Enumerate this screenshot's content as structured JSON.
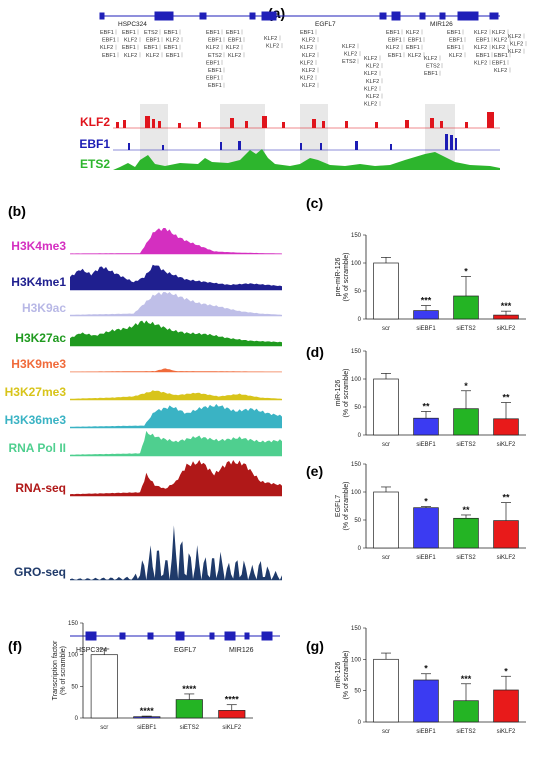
{
  "colors": {
    "klf2": "#e0141c",
    "ebf1": "#1c1cb4",
    "ets2": "#2db52d",
    "scr": "#ffffff",
    "siEBF1": "#3b3bf2",
    "siETS2": "#24b424",
    "siKLF2": "#e81a1a",
    "h3k4me3": "#d42fc0",
    "h3k4me1": "#1f1f8f",
    "h3k9ac": "#b8b8e6",
    "h3k27ac": "#1f9a1f",
    "h3k9me3": "#f06a3a",
    "h3k27me3": "#d8c41a",
    "h3k36me3": "#3ab3c4",
    "rnapol2": "#4fcf8f",
    "rnaseq": "#b01818",
    "groseq": "#1f3a6a"
  },
  "panel_a": {
    "label": "(a)",
    "genes": [
      "HSPC324",
      "EGFL7",
      "MIR126"
    ],
    "tf_tracks": [
      {
        "name": "KLF2",
        "color": "#e0141c"
      },
      {
        "name": "EBF1",
        "color": "#1c1cb4"
      },
      {
        "name": "ETS2",
        "color": "#2db52d"
      }
    ],
    "site_labels": [
      [
        "EBF1",
        "EBF1",
        "KLF2",
        "EBF1"
      ],
      [
        "EBF1",
        "KLF2",
        "EBF1",
        "KLF2"
      ],
      [
        "ETS2",
        "EBF1",
        "EBF1",
        "KLF2"
      ],
      [
        "EBF1",
        "KLF2",
        "EBF1",
        "EBF1"
      ],
      [
        "EBF1",
        "EBF1",
        "KLF2",
        "ETS2",
        "EBF1",
        "EBF1",
        "EBF1",
        "EBF1"
      ],
      [
        "EBF1",
        "EBF1",
        "KLF2",
        "KLF2"
      ],
      [
        "KLF2",
        "KLF2"
      ],
      [
        "EBF1",
        "KLF2",
        "KLF2",
        "KLF2",
        "KLF2",
        "KLF2",
        "KLF2",
        "KLF2"
      ],
      [
        "KLF2",
        "KLF2",
        "ETS2"
      ],
      [
        "KLF2",
        "KLF2",
        "KLF2",
        "KLF2",
        "KLF2",
        "KLF2",
        "KLF2"
      ],
      [
        "EBF1",
        "EBF1",
        "KLF2",
        "EBF1"
      ],
      [
        "KLF2",
        "EBF1",
        "EBF1",
        "KLF2"
      ],
      [
        "KLF2",
        "ETS2",
        "EBF1"
      ],
      [
        "EBF1",
        "EBF1",
        "EBF1",
        "KLF2"
      ],
      [
        "KLF2",
        "EBF1",
        "KLF2",
        "EBF1",
        "KLF2"
      ],
      [
        "KLF2",
        "KLF2",
        "KLF2",
        "EBF1",
        "EBF1",
        "KLF2"
      ],
      [
        "KLF2",
        "KLF2",
        "KLF2"
      ]
    ]
  },
  "panel_b": {
    "label": "(b)",
    "tracks": [
      {
        "name": "H3K4me3",
        "color": "#d42fc0"
      },
      {
        "name": "H3K4me1",
        "color": "#1f1f8f"
      },
      {
        "name": "H3K9ac",
        "color": "#b8b8e6"
      },
      {
        "name": "H3K27ac",
        "color": "#1f9a1f"
      },
      {
        "name": "H3K9me3",
        "color": "#f06a3a"
      },
      {
        "name": "H3K27me3",
        "color": "#d8c41a"
      },
      {
        "name": "H3K36me3",
        "color": "#3ab3c4"
      },
      {
        "name": "RNA Pol II",
        "color": "#4fcf8f"
      },
      {
        "name": "RNA-seq",
        "color": "#b01818"
      },
      {
        "name": "GRO-seq",
        "color": "#1f3a6a"
      }
    ],
    "genes": [
      "HSPC324",
      "EGFL7",
      "MIR126"
    ]
  },
  "chart_data": [
    {
      "id": "c",
      "label": "(c)",
      "type": "bar",
      "ylabel_lines": [
        "pre-miR-126",
        "(% of scramble)"
      ],
      "categories": [
        "scr",
        "siEBF1",
        "siETS2",
        "siKLF2"
      ],
      "values": [
        100,
        15,
        41,
        7
      ],
      "errors": [
        10,
        9,
        35,
        7
      ],
      "significance": [
        "",
        "***",
        "*",
        "***"
      ],
      "ylim": [
        0,
        150
      ],
      "yticks": [
        0,
        50,
        100,
        150
      ],
      "ytick_labels": [
        "0",
        "50",
        "100",
        "150"
      ]
    },
    {
      "id": "d",
      "label": "(d)",
      "type": "bar",
      "ylabel_lines": [
        "miR-126",
        "(% of scramble)"
      ],
      "categories": [
        "scr",
        "siEBF1",
        "siETS2",
        "siKLF2"
      ],
      "values": [
        100,
        30,
        47,
        29
      ],
      "errors": [
        10,
        12,
        32,
        29
      ],
      "significance": [
        "",
        "**",
        "*",
        "**"
      ],
      "ylim": [
        0,
        150
      ],
      "yticks": [
        0,
        50,
        100,
        150
      ],
      "ytick_labels": [
        "0",
        "50",
        "100",
        "150"
      ]
    },
    {
      "id": "e",
      "label": "(e)",
      "type": "bar",
      "ylabel_lines": [
        "EGFL7",
        "(% of scramble)"
      ],
      "categories": [
        "scr",
        "siEBF1",
        "siETS2",
        "siKLF2"
      ],
      "values": [
        100,
        72,
        53,
        49
      ],
      "errors": [
        9,
        2,
        6,
        32
      ],
      "significance": [
        "",
        "*",
        "**",
        "**"
      ],
      "ylim": [
        0,
        150
      ],
      "yticks": [
        0,
        50,
        100,
        150
      ],
      "ytick_labels": [
        "0",
        "50",
        "100",
        "150"
      ]
    },
    {
      "id": "f",
      "label": "(f)",
      "type": "bar",
      "ylabel_lines": [
        "Transcription factor",
        "(% of scramble)"
      ],
      "categories": [
        "scr",
        "siEBF1",
        "siETS2",
        "siKLF2"
      ],
      "values": [
        100,
        2,
        29,
        12
      ],
      "errors": [
        9,
        1,
        9,
        9
      ],
      "significance": [
        "",
        "****",
        "****",
        "****"
      ],
      "ylim": [
        0,
        150
      ],
      "yticks": [
        0,
        50,
        100,
        150
      ],
      "ytick_labels": [
        "0",
        "50",
        "100",
        "150"
      ]
    },
    {
      "id": "g",
      "label": "(g)",
      "type": "bar",
      "ylabel_lines": [
        "miR-126",
        "(% of scramble)"
      ],
      "categories": [
        "scr",
        "siEBF1",
        "siETS2",
        "siKLF2"
      ],
      "values": [
        100,
        67,
        34,
        51
      ],
      "errors": [
        10,
        10,
        27,
        22
      ],
      "significance": [
        "",
        "*",
        "***",
        "*"
      ],
      "ylim": [
        0,
        150
      ],
      "yticks": [
        0,
        50,
        100,
        150
      ],
      "ytick_labels": [
        "0",
        "50",
        "100",
        "150"
      ]
    }
  ]
}
